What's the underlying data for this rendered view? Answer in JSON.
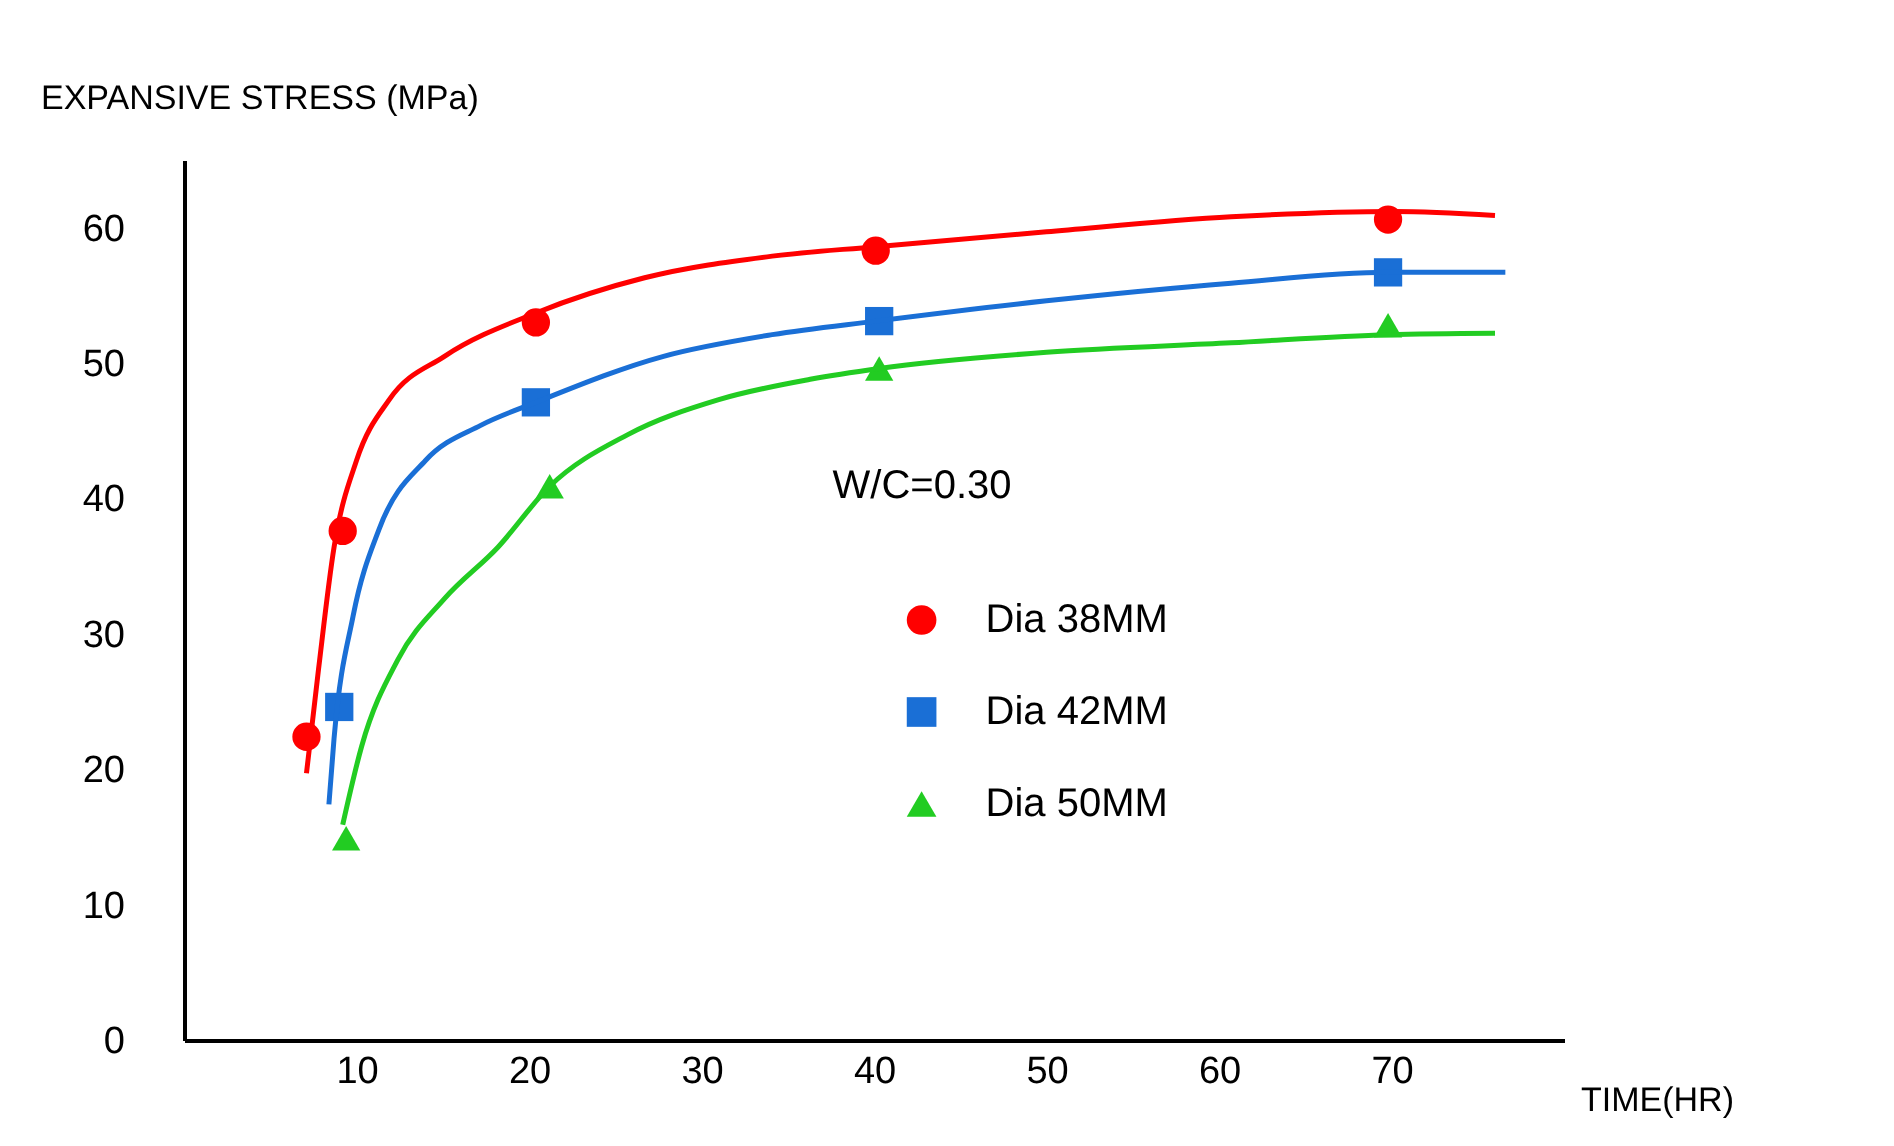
{
  "chart_data": {
    "type": "scatter",
    "xlabel": "TIME(HR)",
    "ylabel": "EXPANSIVE STRESS (MPa)",
    "annotations": [
      "W/C=0.30"
    ],
    "xlim": [
      0,
      80
    ],
    "ylim": [
      0,
      65
    ],
    "xticks": [
      10,
      20,
      30,
      40,
      50,
      60,
      70
    ],
    "yticks": [
      0,
      10,
      20,
      30,
      40,
      50,
      60
    ],
    "grid": false,
    "legend": "right",
    "series": [
      {
        "name": "Dia 38MM",
        "type": "scatter",
        "marker": "circle",
        "color": "#ff0000",
        "x": [
          7.1,
          9.2,
          20.4,
          40.1,
          69.8
        ],
        "values": [
          22.4,
          37.6,
          53,
          58.3,
          60.6
        ]
      },
      {
        "name": "Dia 42MM",
        "type": "scatter",
        "marker": "square",
        "color": "#1a6fd6",
        "x": [
          9.0,
          20.4,
          40.3,
          69.8
        ],
        "values": [
          24.6,
          47.1,
          53.1,
          56.7
        ]
      },
      {
        "name": "Dia 50MM",
        "type": "scatter",
        "marker": "triangle",
        "color": "#22cc22",
        "x": [
          9.4,
          21.2,
          40.3,
          69.8
        ],
        "values": [
          14.9,
          40.9,
          49.6,
          52.8
        ]
      },
      {
        "type": "line",
        "color": "#ff0000",
        "x": [
          7.1,
          7.8,
          8.7,
          10,
          11.9,
          15.1,
          20.4,
          26.7,
          34.1,
          40.1,
          50,
          60.7,
          70.2,
          76
        ],
        "values": [
          19.7,
          27.4,
          36.4,
          42.8,
          47.3,
          50.5,
          53.7,
          56.3,
          57.9,
          58.6,
          59.7,
          60.8,
          61.2,
          60.9
        ]
      },
      {
        "type": "line",
        "color": "#1a6fd6",
        "x": [
          8.4,
          8.7,
          9.8,
          11.3,
          14,
          17.2,
          20.4,
          27.8,
          34.1,
          40.1,
          50,
          60.7,
          69.8,
          76.6
        ],
        "values": [
          17.4,
          22.3,
          31.3,
          37.7,
          42.8,
          45.4,
          47.1,
          50.5,
          52.1,
          53.1,
          54.6,
          55.9,
          56.7,
          56.7
        ]
      },
      {
        "type": "line",
        "color": "#22cc22",
        "x": [
          9.2,
          10.3,
          12.4,
          15.1,
          18.2,
          21.2,
          25.7,
          31,
          36.3,
          40.3,
          50,
          60.7,
          69.8,
          76
        ],
        "values": [
          15.9,
          21.7,
          28.1,
          32.6,
          36.4,
          40.9,
          44.7,
          47.3,
          48.8,
          49.6,
          50.8,
          51.5,
          52.1,
          52.2
        ]
      }
    ]
  }
}
